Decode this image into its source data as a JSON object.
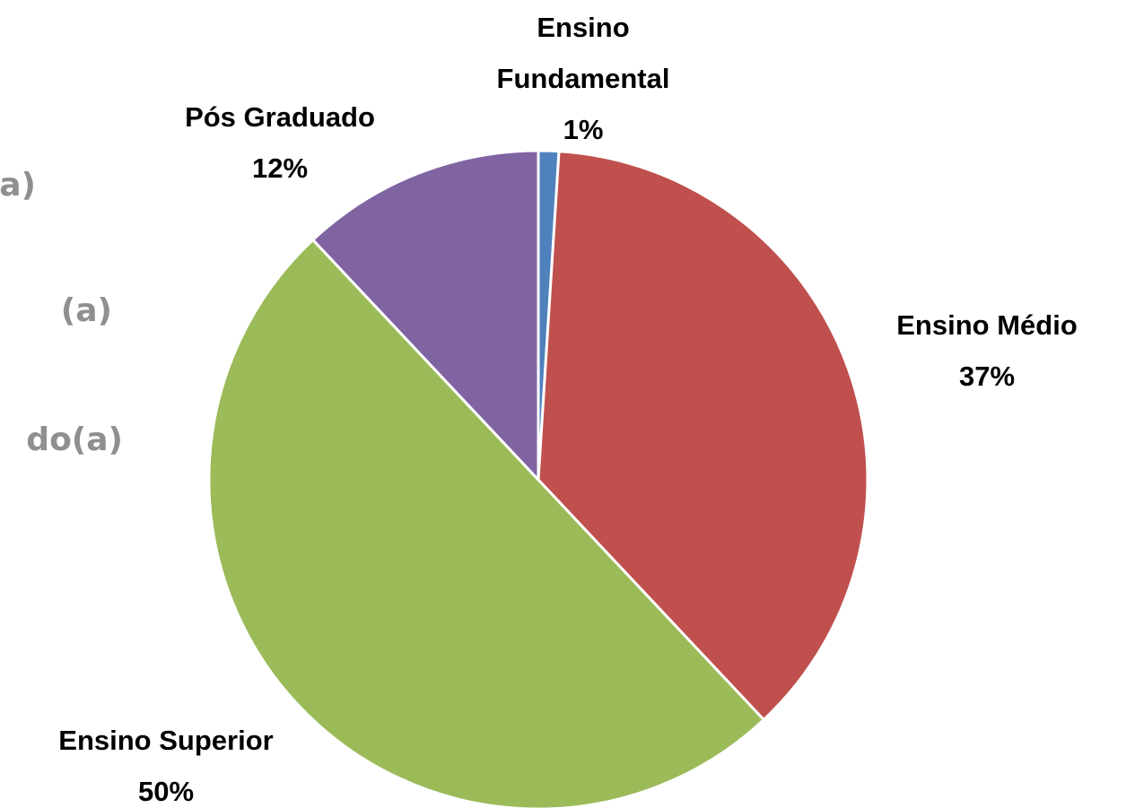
{
  "chart_data": {
    "type": "pie",
    "categories": [
      "Ensino Fundamental",
      "Ensino Médio",
      "Ensino Superior",
      "Pós Graduado"
    ],
    "values": [
      1,
      37,
      50,
      12
    ],
    "value_labels": [
      "1%",
      "37%",
      "50%",
      "12%"
    ],
    "colors": [
      "#4f81bd",
      "#c0504d",
      "#9bbb59",
      "#8064a2"
    ],
    "start_angle": 0,
    "direction": "clockwise"
  },
  "background_text": [
    "a)",
    "(a)",
    "do(a)"
  ]
}
